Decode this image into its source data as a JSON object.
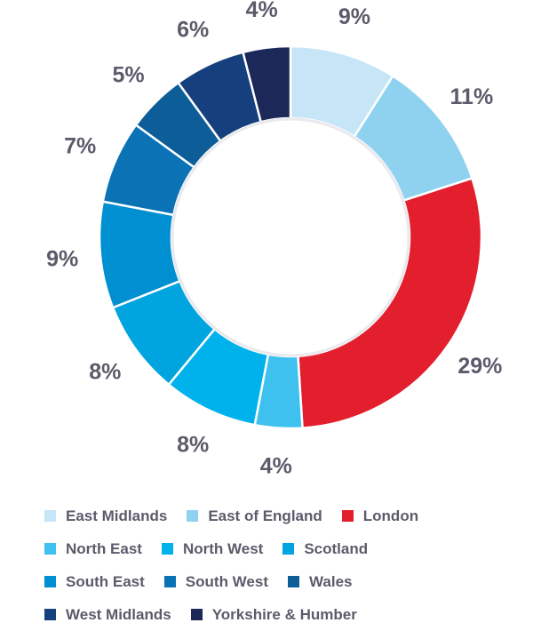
{
  "chart_data": {
    "type": "pie",
    "donut": true,
    "title": "",
    "legend_position": "bottom",
    "series": [
      {
        "name": "East Midlands",
        "value": 9,
        "label": "9%",
        "color": "#c6e6f7"
      },
      {
        "name": "East of England",
        "value": 11,
        "label": "11%",
        "color": "#8fd2f0"
      },
      {
        "name": "London",
        "value": 29,
        "label": "29%",
        "color": "#e31e2d"
      },
      {
        "name": "North East",
        "value": 4,
        "label": "4%",
        "color": "#3ec1ee"
      },
      {
        "name": "North West",
        "value": 8,
        "label": "8%",
        "color": "#00b2ec"
      },
      {
        "name": "Scotland",
        "value": 8,
        "label": "8%",
        "color": "#00a4df"
      },
      {
        "name": "South East",
        "value": 9,
        "label": "9%",
        "color": "#008fd0"
      },
      {
        "name": "South West",
        "value": 7,
        "label": "7%",
        "color": "#0a72b5"
      },
      {
        "name": "Wales",
        "value": 5,
        "label": "5%",
        "color": "#0c5d98"
      },
      {
        "name": "West Midlands",
        "value": 6,
        "label": "6%",
        "color": "#153f7d"
      },
      {
        "name": "Yorkshire & Humber",
        "value": 4,
        "label": "4%",
        "color": "#1c2858"
      }
    ]
  },
  "legend_rows": [
    [
      0,
      1,
      2
    ],
    [
      3,
      4,
      5
    ],
    [
      6,
      7,
      8
    ],
    [
      9,
      10
    ]
  ]
}
